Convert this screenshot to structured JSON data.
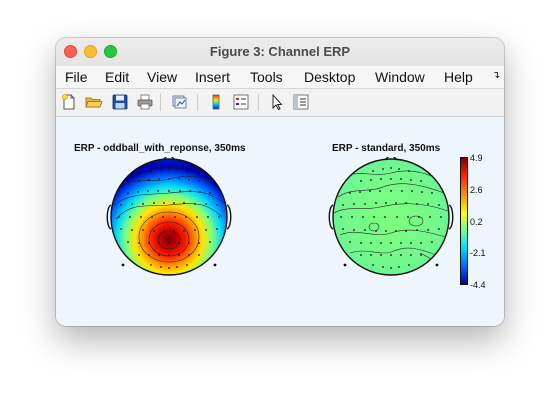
{
  "window": {
    "title": "Figure 3: Channel ERP"
  },
  "menu": [
    {
      "label": "File"
    },
    {
      "label": "Edit"
    },
    {
      "label": "View"
    },
    {
      "label": "Insert"
    },
    {
      "label": "Tools"
    },
    {
      "label": "Desktop"
    },
    {
      "label": "Window"
    },
    {
      "label": "Help"
    }
  ],
  "toolbar": [
    {
      "icon": "new-figure-icon"
    },
    {
      "icon": "open-folder-icon"
    },
    {
      "icon": "save-icon"
    },
    {
      "icon": "print-icon"
    },
    {
      "icon": "link-plot-icon"
    },
    {
      "icon": "colorbar-icon"
    },
    {
      "icon": "legend-icon"
    },
    {
      "icon": "pointer-icon"
    },
    {
      "icon": "property-inspector-icon"
    }
  ],
  "plots": [
    {
      "title": "ERP - oddball_with_reponse, 350ms"
    },
    {
      "title": "ERP - standard, 350ms"
    }
  ],
  "colorbar": {
    "ticks": [
      "4.9",
      "2.6",
      "0.2",
      "-2.1",
      "-4.4"
    ],
    "colors": [
      "#7a0000",
      "#ff2000",
      "#ff9900",
      "#ffff00",
      "#7fff7f",
      "#00e5ff",
      "#0060ff",
      "#00008c"
    ]
  }
}
